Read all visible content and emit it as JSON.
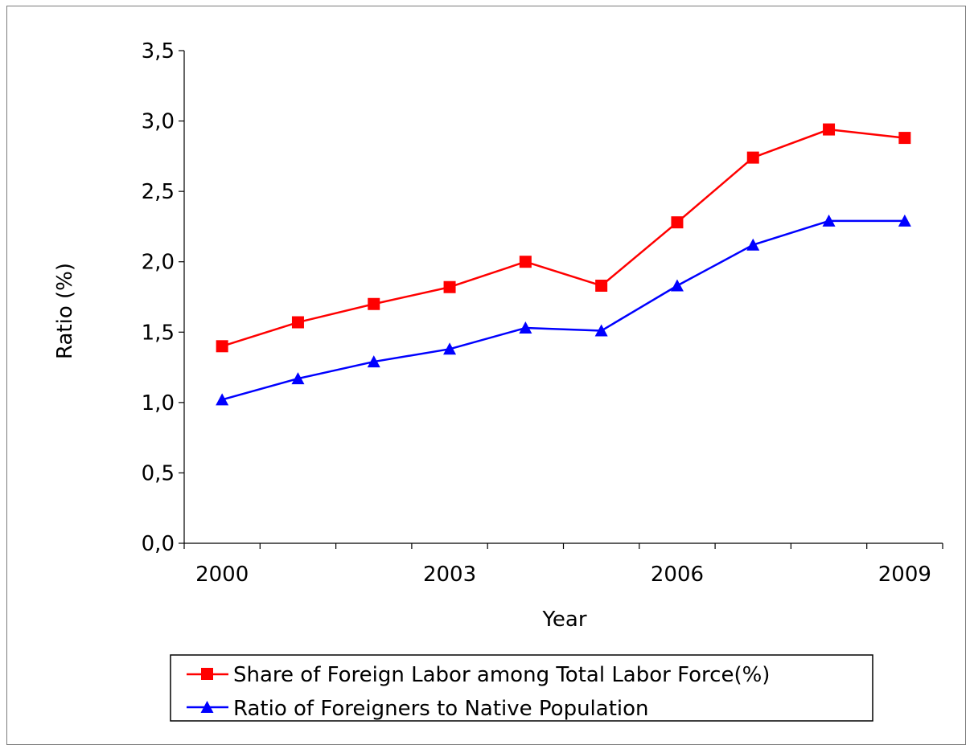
{
  "chart_data": {
    "type": "line",
    "x": [
      2000,
      2001,
      2002,
      2003,
      2004,
      2005,
      2006,
      2007,
      2008,
      2009
    ],
    "x_tick_labels": [
      "2000",
      "2003",
      "2006",
      "2009"
    ],
    "y_tick_labels": [
      "0,0",
      "0,5",
      "1,0",
      "1,5",
      "2,0",
      "2,5",
      "3,0",
      "3,5"
    ],
    "xlabel": "Year",
    "ylabel": "Ratio (%)",
    "ylim": [
      0,
      3.5
    ],
    "grid": false,
    "legend_position": "bottom",
    "series": [
      {
        "name": "Share of Foreign Labor among Total Labor Force(%)",
        "color": "#ff0000",
        "marker": "square",
        "values": [
          1.4,
          1.57,
          1.7,
          1.82,
          2.0,
          1.83,
          2.28,
          2.74,
          2.94,
          2.88
        ]
      },
      {
        "name": "Ratio of Foreigners to Native Population",
        "color": "#0000ff",
        "marker": "triangle",
        "values": [
          1.02,
          1.17,
          1.29,
          1.38,
          1.53,
          1.51,
          1.83,
          2.12,
          2.29,
          2.29
        ]
      }
    ]
  }
}
